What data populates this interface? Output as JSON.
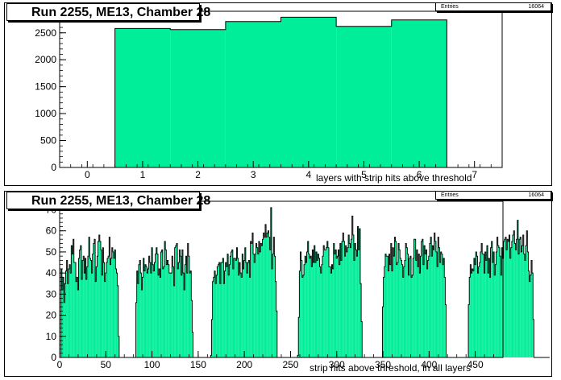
{
  "chart_data": [
    {
      "type": "bar",
      "title": "Run 2255, ME13, Chamber 28",
      "xlabel": "layers with strip hits above threshold",
      "ylabel": "",
      "stats": {
        "label": "Entries",
        "value": "16064"
      },
      "xlim": [
        -0.5,
        7.5
      ],
      "ylim": [
        0,
        2900
      ],
      "xticks": [
        0,
        1,
        2,
        3,
        4,
        5,
        6,
        7
      ],
      "yticks": [
        0,
        500,
        1000,
        1500,
        2000,
        2500
      ],
      "categories": [
        1,
        2,
        3,
        4,
        5,
        6
      ],
      "values": [
        2580,
        2560,
        2710,
        2790,
        2620,
        2740
      ],
      "fill_color": "#00ee99",
      "grid": false
    },
    {
      "type": "bar",
      "title": "Run 2255, ME13, Chamber 28",
      "xlabel": "strip hits above threshold, in all layers",
      "ylabel": "",
      "stats": {
        "label": "Entries",
        "value": "16064"
      },
      "xlim": [
        0,
        480
      ],
      "ylim": [
        0,
        74
      ],
      "xticks": [
        0,
        50,
        100,
        150,
        200,
        250,
        300,
        350,
        400,
        450
      ],
      "yticks": [
        0,
        10,
        20,
        30,
        40,
        50,
        60,
        70
      ],
      "bin_width": 1,
      "x_start": 1,
      "values": [
        0,
        42,
        32,
        38,
        26,
        35,
        41,
        46,
        35,
        42,
        44,
        40,
        53,
        49,
        56,
        45,
        45,
        36,
        38,
        32,
        47,
        51,
        53,
        37,
        46,
        48,
        40,
        47,
        37,
        43,
        48,
        57,
        47,
        46,
        40,
        49,
        54,
        56,
        36,
        43,
        48,
        55,
        58,
        55,
        51,
        39,
        52,
        45,
        36,
        40,
        45,
        47,
        48,
        57,
        44,
        47,
        52,
        50,
        47,
        51,
        42,
        40,
        34,
        10,
        0,
        0,
        0,
        0,
        0,
        0,
        0,
        0,
        0,
        0,
        0,
        0,
        0,
        0,
        0,
        0,
        0,
        0,
        26,
        41,
        35,
        44,
        46,
        40,
        32,
        38,
        47,
        41,
        44,
        43,
        40,
        42,
        48,
        45,
        40,
        52,
        44,
        41,
        45,
        49,
        52,
        49,
        39,
        42,
        38,
        50,
        51,
        42,
        43,
        55,
        51,
        44,
        46,
        44,
        40,
        40,
        40,
        48,
        43,
        34,
        52,
        53,
        54,
        42,
        45,
        51,
        48,
        39,
        51,
        40,
        32,
        44,
        48,
        40,
        54,
        48,
        40,
        41,
        27,
        12,
        0,
        0,
        0,
        0,
        0,
        0,
        0,
        0,
        0,
        0,
        0,
        0,
        0,
        0,
        0,
        0,
        0,
        0,
        0,
        1,
        18,
        36,
        38,
        41,
        35,
        39,
        43,
        44,
        45,
        35,
        45,
        45,
        47,
        35,
        41,
        45,
        43,
        49,
        39,
        44,
        48,
        50,
        51,
        42,
        47,
        47,
        46,
        52,
        47,
        39,
        45,
        40,
        38,
        49,
        42,
        46,
        52,
        45,
        40,
        45,
        46,
        38,
        55,
        54,
        59,
        49,
        45,
        49,
        54,
        52,
        49,
        55,
        50,
        54,
        53,
        56,
        59,
        57,
        63,
        57,
        59,
        60,
        57,
        51,
        71,
        42,
        49,
        57,
        48,
        36,
        22,
        0,
        0,
        0,
        0,
        0,
        0,
        0,
        0,
        0,
        0,
        0,
        0,
        0,
        0,
        0,
        0,
        0,
        0,
        0,
        0,
        0,
        0,
        1,
        19,
        41,
        50,
        46,
        38,
        39,
        44,
        48,
        45,
        50,
        55,
        49,
        47,
        48,
        43,
        51,
        45,
        53,
        45,
        50,
        46,
        49,
        47,
        43,
        40,
        44,
        48,
        53,
        51,
        51,
        52,
        55,
        52,
        43,
        43,
        40,
        44,
        42,
        54,
        49,
        51,
        47,
        48,
        51,
        44,
        54,
        46,
        55,
        59,
        55,
        48,
        53,
        50,
        52,
        58,
        54,
        52,
        56,
        67,
        58,
        46,
        54,
        51,
        48,
        62,
        51,
        61,
        35,
        17,
        0,
        0,
        0,
        0,
        0,
        0,
        0,
        0,
        0,
        0,
        0,
        0,
        0,
        0,
        0,
        0,
        0,
        0,
        0,
        0,
        0,
        0,
        24,
        38,
        43,
        49,
        48,
        48,
        41,
        49,
        44,
        54,
        41,
        52,
        48,
        57,
        55,
        44,
        45,
        54,
        51,
        47,
        46,
        44,
        38,
        43,
        46,
        54,
        52,
        49,
        39,
        47,
        48,
        38,
        39,
        47,
        56,
        56,
        46,
        51,
        43,
        49,
        40,
        48,
        55,
        56,
        44,
        53,
        49,
        51,
        42,
        46,
        48,
        54,
        57,
        48,
        53,
        51,
        59,
        55,
        50,
        43,
        57,
        52,
        45,
        50,
        49,
        44,
        47,
        38,
        25,
        0,
        0,
        0,
        0,
        0,
        0,
        0,
        0,
        0,
        0,
        0,
        0,
        0,
        0,
        0,
        0,
        0,
        0,
        0,
        0,
        0,
        0,
        0,
        0,
        25,
        38,
        44,
        40,
        42,
        41,
        47,
        44,
        50,
        48,
        40,
        43,
        45,
        50,
        54,
        49,
        49,
        40,
        50,
        46,
        53,
        40,
        47,
        38,
        52,
        55,
        45,
        50,
        39,
        44,
        50,
        57,
        53,
        52,
        48,
        39,
        52,
        47,
        55,
        56,
        57,
        51,
        56,
        55,
        58,
        47,
        52,
        55,
        58,
        60,
        54,
        51,
        56,
        65,
        49,
        56,
        57,
        50,
        53,
        58,
        49,
        46,
        53,
        60,
        50,
        41,
        36,
        39,
        46,
        40,
        18,
        0,
        0,
        0,
        0,
        0,
        0,
        0,
        0,
        0,
        0,
        0,
        0,
        0,
        0,
        0,
        0,
        0
      ],
      "fill_color": "#00ee99",
      "grid": false
    }
  ]
}
